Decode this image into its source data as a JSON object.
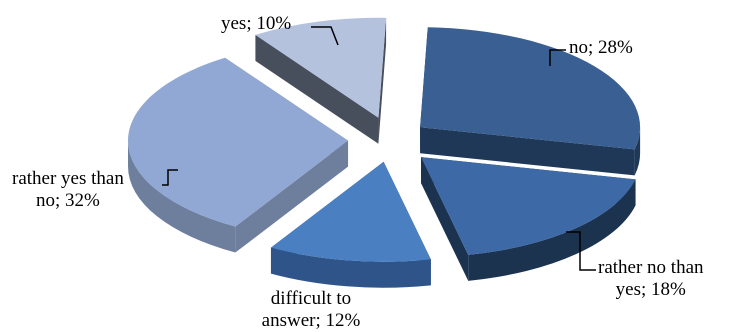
{
  "chart_data": {
    "type": "pie",
    "style": "exploded-3d",
    "slices": [
      {
        "name": "no",
        "value": 28,
        "color": "#3a5f93",
        "dark": "#1f3857",
        "label_l1": "no; 28%"
      },
      {
        "name": "rather no than yes",
        "value": 18,
        "color": "#3d6aa6",
        "dark": "#1c3350",
        "label_l1": "rather no than",
        "label_l2": "yes; 18%"
      },
      {
        "name": "difficult to answer",
        "value": 12,
        "color": "#4a7fc2",
        "dark": "#2f548a",
        "label_l1": "difficult to",
        "label_l2": "answer; 12%"
      },
      {
        "name": "rather yes than no",
        "value": 32,
        "color": "#92a8d4",
        "dark": "#6e7f9e",
        "label_l1": "rather yes than",
        "label_l2": "no; 32%"
      },
      {
        "name": "yes",
        "value": 10,
        "color": "#b5c2de",
        "dark": "#474f5c",
        "label_l1": "yes;  10%"
      }
    ]
  }
}
